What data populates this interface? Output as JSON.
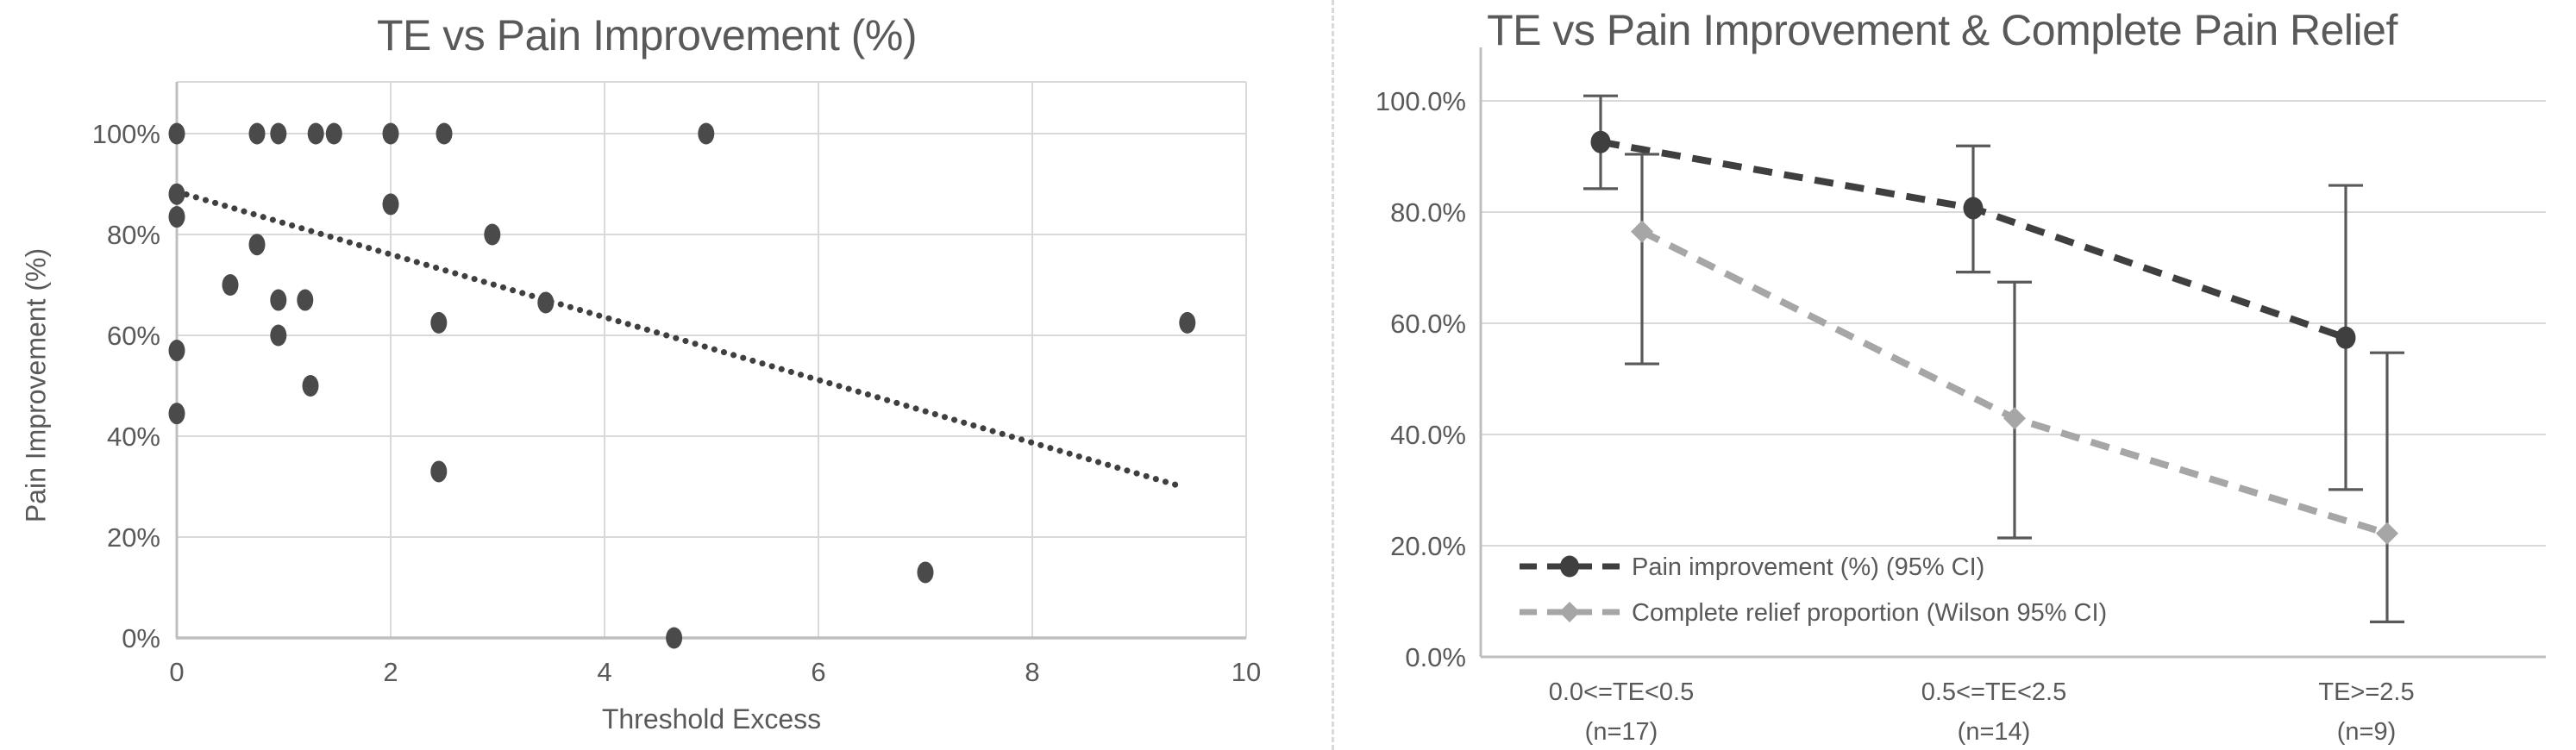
{
  "colors": {
    "text": "#595959",
    "grid": "#d9d9d9",
    "axis": "#bfbfbf",
    "scatter_marker": "#4a4a4a",
    "trendline": "#3f3f3f",
    "series_dark": "#3f3f3f",
    "series_gray": "#a6a6a6",
    "error_bar": "#595959",
    "divider": "#d9d9d9"
  },
  "chart_data": [
    {
      "type": "scatter",
      "title": "TE vs Pain Improvement (%)",
      "xlabel": "Threshold Excess",
      "ylabel": "Pain Improvement (%)",
      "xlim": [
        0,
        10
      ],
      "ylim_pct": [
        0,
        100
      ],
      "x_tick_labels": [
        "0",
        "2",
        "4",
        "6",
        "8",
        "10"
      ],
      "x_tick_values": [
        0,
        2,
        4,
        6,
        8,
        10
      ],
      "y_tick_labels": [
        "0%",
        "20%",
        "40%",
        "60%",
        "80%",
        "100%"
      ],
      "y_tick_values": [
        0,
        20,
        40,
        60,
        80,
        100
      ],
      "grid": true,
      "points": [
        [
          0,
          100
        ],
        [
          0.75,
          100
        ],
        [
          0.95,
          100
        ],
        [
          1.3,
          100
        ],
        [
          1.47,
          100
        ],
        [
          2,
          100
        ],
        [
          2.5,
          100
        ],
        [
          4.95,
          100
        ],
        [
          0,
          88
        ],
        [
          0,
          83.5
        ],
        [
          2,
          86
        ],
        [
          2.95,
          80
        ],
        [
          0.75,
          78
        ],
        [
          0.5,
          70
        ],
        [
          0.95,
          67
        ],
        [
          1.2,
          67
        ],
        [
          3.45,
          66.5
        ],
        [
          2.45,
          62.5
        ],
        [
          9.45,
          62.5
        ],
        [
          0.95,
          60
        ],
        [
          0,
          57
        ],
        [
          1.25,
          50
        ],
        [
          0,
          44.5
        ],
        [
          2.45,
          33
        ],
        [
          7,
          13
        ],
        [
          4.65,
          0
        ]
      ],
      "trendline": {
        "style": "dotted",
        "x1": 0,
        "y1": 88.5,
        "x2": 9.4,
        "y2": 30
      }
    },
    {
      "type": "line",
      "title": "TE vs Pain Improvement & Complete Pain Relief",
      "categories": [
        "0.0<=TE<0.5",
        "0.5<=TE<2.5",
        "TE>=2.5"
      ],
      "category_sublabels": [
        "(n=17)",
        "(n=14)",
        "(n=9)"
      ],
      "y_tick_labels": [
        "0.0%",
        "20.0%",
        "40.0%",
        "60.0%",
        "80.0%",
        "100.0%"
      ],
      "y_tick_values": [
        0,
        20,
        40,
        60,
        80,
        100
      ],
      "ylim_pct": [
        0,
        100
      ],
      "grid": true,
      "legend_position": "inside-bottom-left",
      "series": [
        {
          "name": "Pain improvement (%) (95% CI)",
          "marker": "circle",
          "line_style": "dashed",
          "color": "#3f3f3f",
          "values": [
            92.6,
            80.7,
            57.4
          ],
          "ci_low": [
            84.2,
            69.2,
            30.1
          ],
          "ci_high": [
            100.9,
            91.9,
            84.8
          ]
        },
        {
          "name": "Complete relief proportion (Wilson 95% CI)",
          "marker": "diamond",
          "line_style": "dashed",
          "color": "#a6a6a6",
          "values": [
            76.5,
            42.9,
            22.2
          ],
          "ci_low": [
            52.7,
            21.4,
            6.3
          ],
          "ci_high": [
            90.4,
            67.4,
            54.7
          ]
        }
      ]
    }
  ]
}
